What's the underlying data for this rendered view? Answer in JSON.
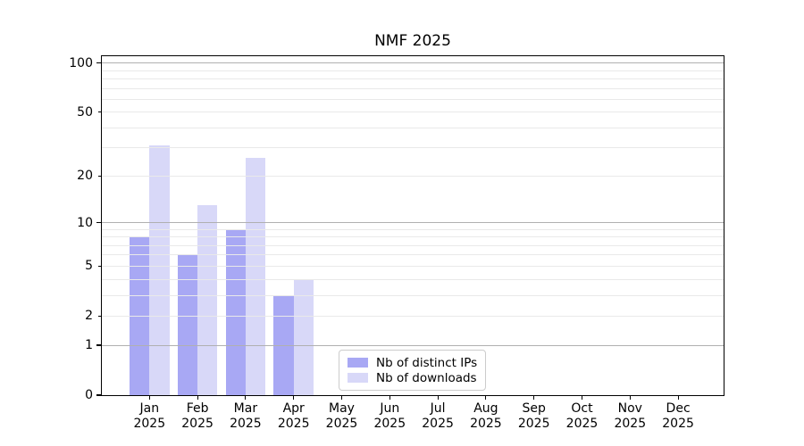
{
  "chart_data": {
    "type": "bar",
    "title": "NMF 2025",
    "categories": [
      "Jan 2025",
      "Feb 2025",
      "Mar 2025",
      "Apr 2025",
      "May 2025",
      "Jun 2025",
      "Jul 2025",
      "Aug 2025",
      "Sep 2025",
      "Oct 2025",
      "Nov 2025",
      "Dec 2025"
    ],
    "series": [
      {
        "name": "Nb of distinct IPs",
        "color": "#a8a8f4",
        "values": [
          8,
          6,
          9,
          3,
          0,
          0,
          0,
          0,
          0,
          0,
          0,
          0
        ]
      },
      {
        "name": "Nb of downloads",
        "color": "#d8d8f8",
        "values": [
          31,
          13,
          26,
          4,
          0,
          0,
          0,
          0,
          0,
          0,
          0,
          0
        ]
      }
    ],
    "xlabel": "",
    "ylabel": "",
    "yscale": "log1p",
    "ylim": [
      0,
      110
    ],
    "yticks": [
      0,
      1,
      2,
      5,
      10,
      20,
      50,
      100
    ],
    "yticks_major": [
      1,
      10,
      100
    ],
    "minor_gridlines": [
      2,
      3,
      4,
      5,
      6,
      7,
      8,
      9,
      20,
      30,
      40,
      50,
      60,
      70,
      80,
      90
    ],
    "grid": "both",
    "legend_position": "lower center"
  },
  "style": {
    "grid_major": "#b0b0b0",
    "grid_minor": "#e9e9e9",
    "spine": "#000000",
    "text": "#000000",
    "legend_border": "#cccccc",
    "background": "#ffffff"
  }
}
